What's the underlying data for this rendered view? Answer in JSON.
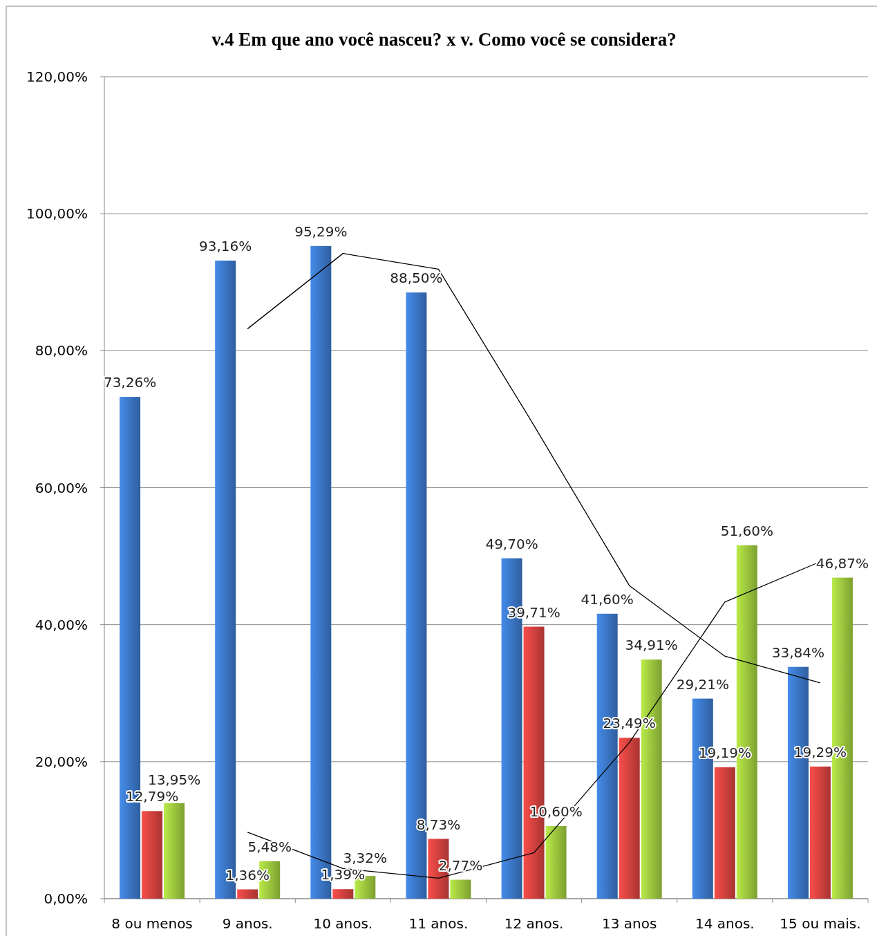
{
  "chart_data": {
    "type": "bar",
    "title": "v.4 Em que ano você nasceu? x v. Como você se considera?",
    "categories": [
      "8 ou menos",
      "9 anos.",
      "10 anos.",
      "11 anos.",
      "12 anos.",
      "13 anos",
      "14 anos.",
      "15 ou mais."
    ],
    "series": [
      {
        "color": "#3a75c4",
        "values": [
          73.26,
          93.16,
          95.29,
          88.5,
          49.7,
          41.6,
          29.21,
          33.84
        ],
        "value_labels": [
          "73,26%",
          "93,16%",
          "95,29%",
          "88,50%",
          "49,70%",
          "41,60%",
          "29,21%",
          "33,84%"
        ]
      },
      {
        "color": "#d0413e",
        "values": [
          12.79,
          1.36,
          1.39,
          8.73,
          39.71,
          23.49,
          19.19,
          19.29
        ],
        "value_labels": [
          "12,79%",
          "1,36%",
          "1,39%",
          "8,73%",
          "39,71%",
          "23,49%",
          "19,19%",
          "19,29%"
        ]
      },
      {
        "color": "#9bc53d",
        "values": [
          13.95,
          5.48,
          3.32,
          2.77,
          10.6,
          34.91,
          51.6,
          46.87
        ],
        "value_labels": [
          "13,95%",
          "5,48%",
          "3,32%",
          "2,77%",
          "10,60%",
          "34,91%",
          "51,60%",
          "46,87%"
        ]
      },
      {
        "type": "line",
        "color": "#000000",
        "values": [
          null,
          83.2,
          94.2,
          91.9,
          69.1,
          45.7,
          35.4,
          31.5
        ]
      },
      {
        "type": "line",
        "color": "#000000",
        "values": [
          null,
          9.7,
          4.4,
          3.0,
          6.7,
          22.8,
          43.3,
          49.2
        ]
      }
    ],
    "ylim": [
      0,
      120
    ],
    "yticks": [
      {
        "value": 0,
        "label": "0,00%"
      },
      {
        "value": 20,
        "label": "20,00%"
      },
      {
        "value": 40,
        "label": "40,00%"
      },
      {
        "value": 60,
        "label": "60,00%"
      },
      {
        "value": 80,
        "label": "80,00%"
      },
      {
        "value": 100,
        "label": "100,00%"
      },
      {
        "value": 120,
        "label": "120,00%"
      }
    ],
    "grid": "y"
  }
}
